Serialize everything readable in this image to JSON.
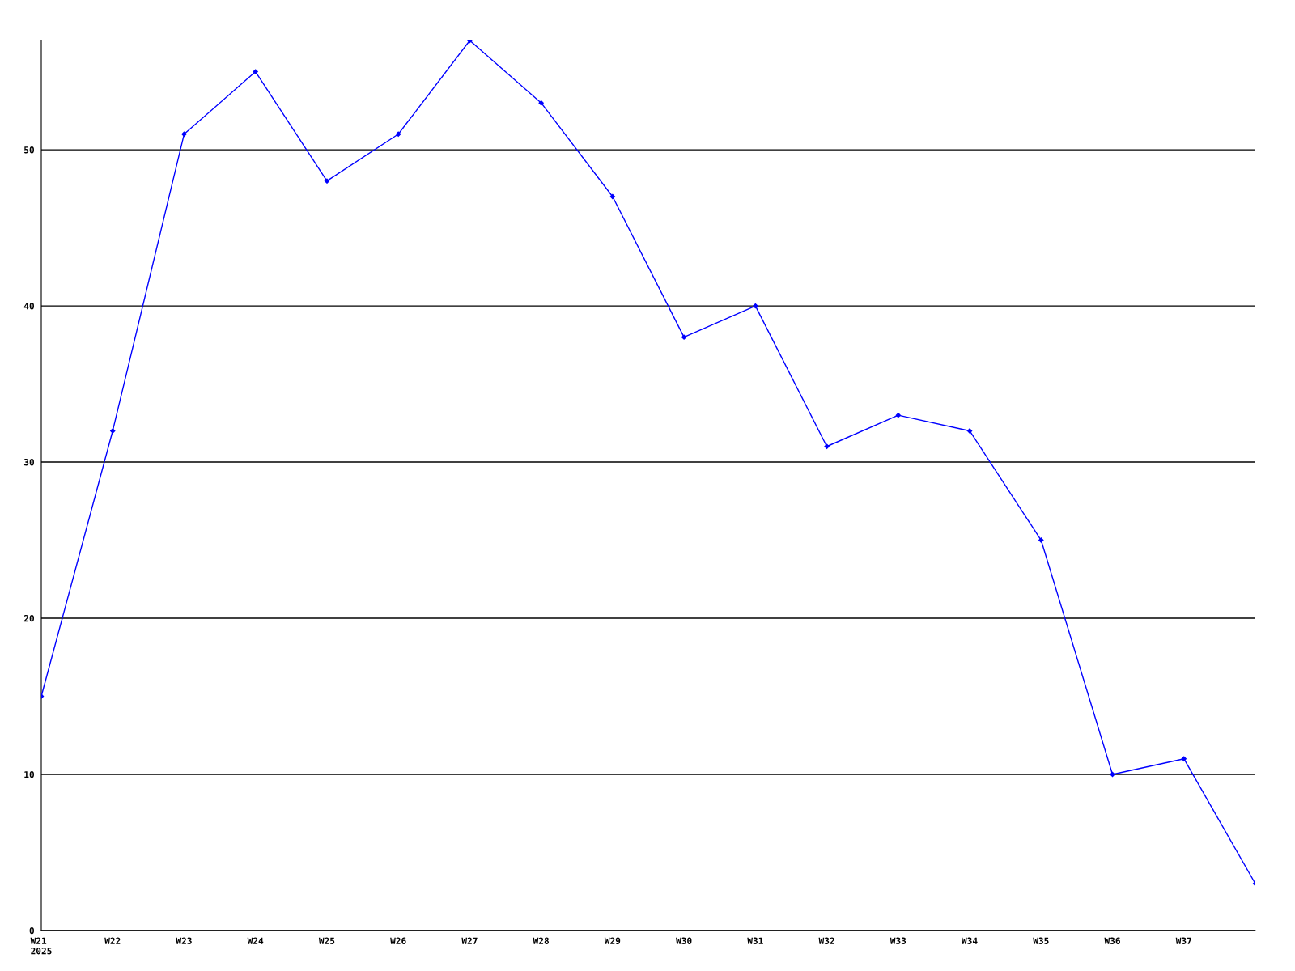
{
  "chart_data": {
    "type": "line",
    "categories": [
      "W21\n2025",
      "W22",
      "W23",
      "W24",
      "W25",
      "W26",
      "W27",
      "W28",
      "W29",
      "W30",
      "W31",
      "W32",
      "W33",
      "W34",
      "W35",
      "W36",
      "W37",
      null
    ],
    "series": [
      {
        "color": "#0000ff",
        "values": [
          15,
          32,
          51,
          55,
          48,
          51,
          57,
          53,
          47,
          38,
          40,
          31,
          33,
          32,
          25,
          10,
          11,
          3
        ]
      }
    ],
    "ylim": [
      0,
      57
    ],
    "yticks": [
      0,
      10,
      20,
      30,
      40,
      50
    ],
    "grid": "y",
    "marker": "diamond",
    "line_style": "solid"
  }
}
